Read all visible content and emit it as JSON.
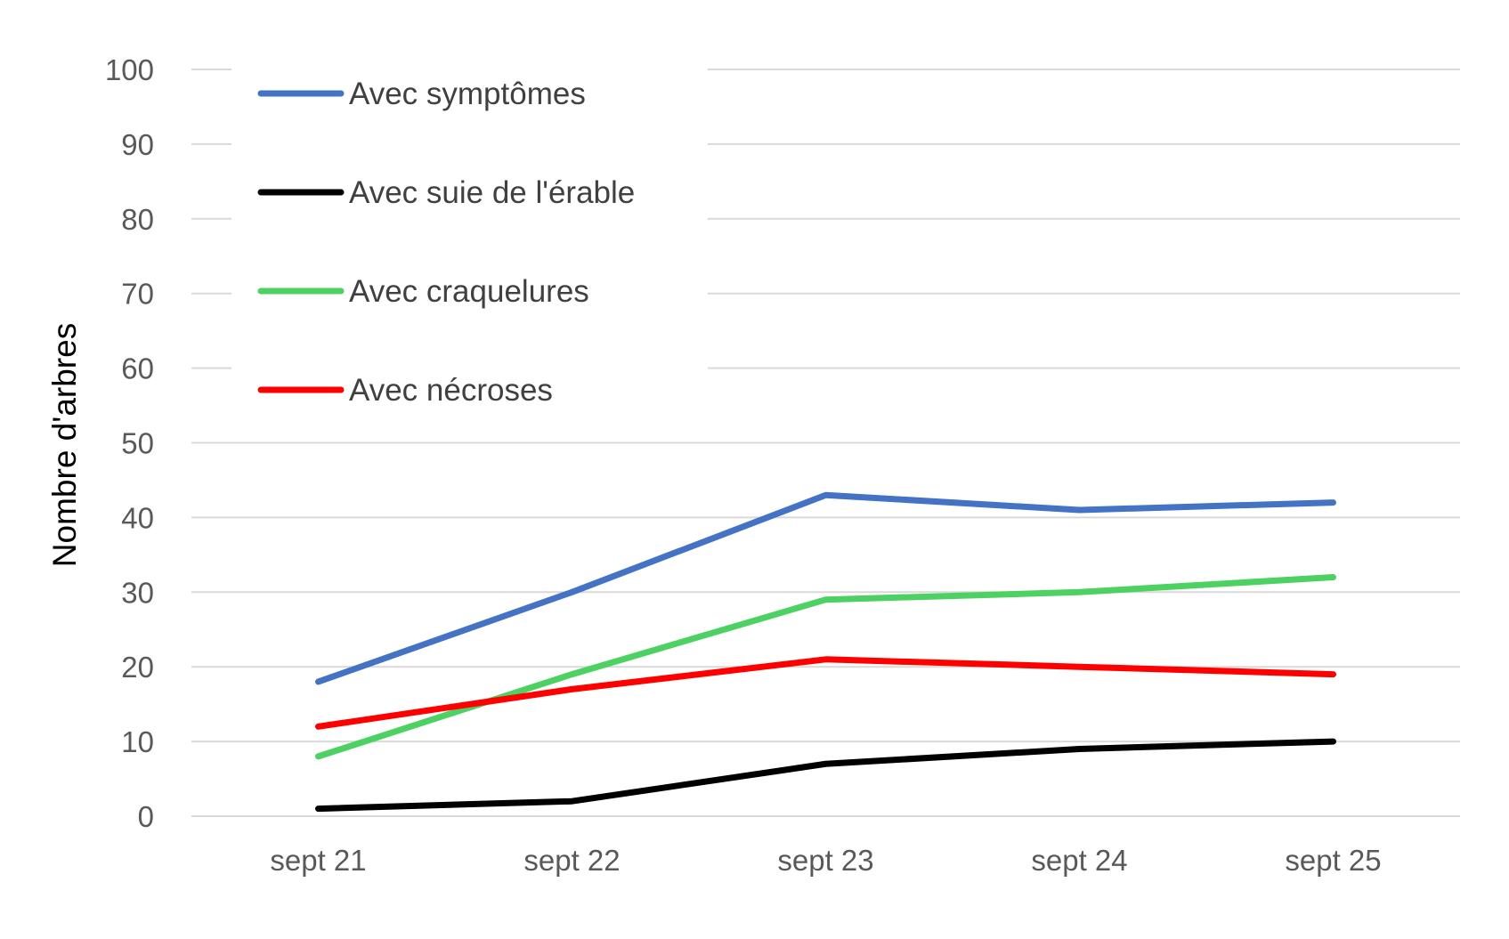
{
  "chart_data": {
    "type": "line",
    "title": "",
    "xlabel": "",
    "ylabel": "Nombre d'arbres",
    "categories": [
      "sept 21",
      "sept 22",
      "sept 23",
      "sept 24",
      "sept 25"
    ],
    "ylim": [
      0,
      100
    ],
    "yticks": [
      0,
      10,
      20,
      30,
      40,
      50,
      60,
      70,
      80,
      90,
      100
    ],
    "grid": true,
    "legend_position": "top-left",
    "series": [
      {
        "name": "Avec symptômes",
        "color": "#4472c4",
        "values": [
          18,
          30,
          43,
          41,
          42
        ]
      },
      {
        "name": "Avec suie de l'érable",
        "color": "#000000",
        "values": [
          1,
          2,
          7,
          9,
          10
        ]
      },
      {
        "name": "Avec craquelures",
        "color": "#4dd163",
        "values": [
          8,
          19,
          29,
          30,
          32
        ]
      },
      {
        "name": "Avec nécroses",
        "color": "#ff0000",
        "values": [
          12,
          17,
          21,
          20,
          19
        ]
      }
    ]
  }
}
